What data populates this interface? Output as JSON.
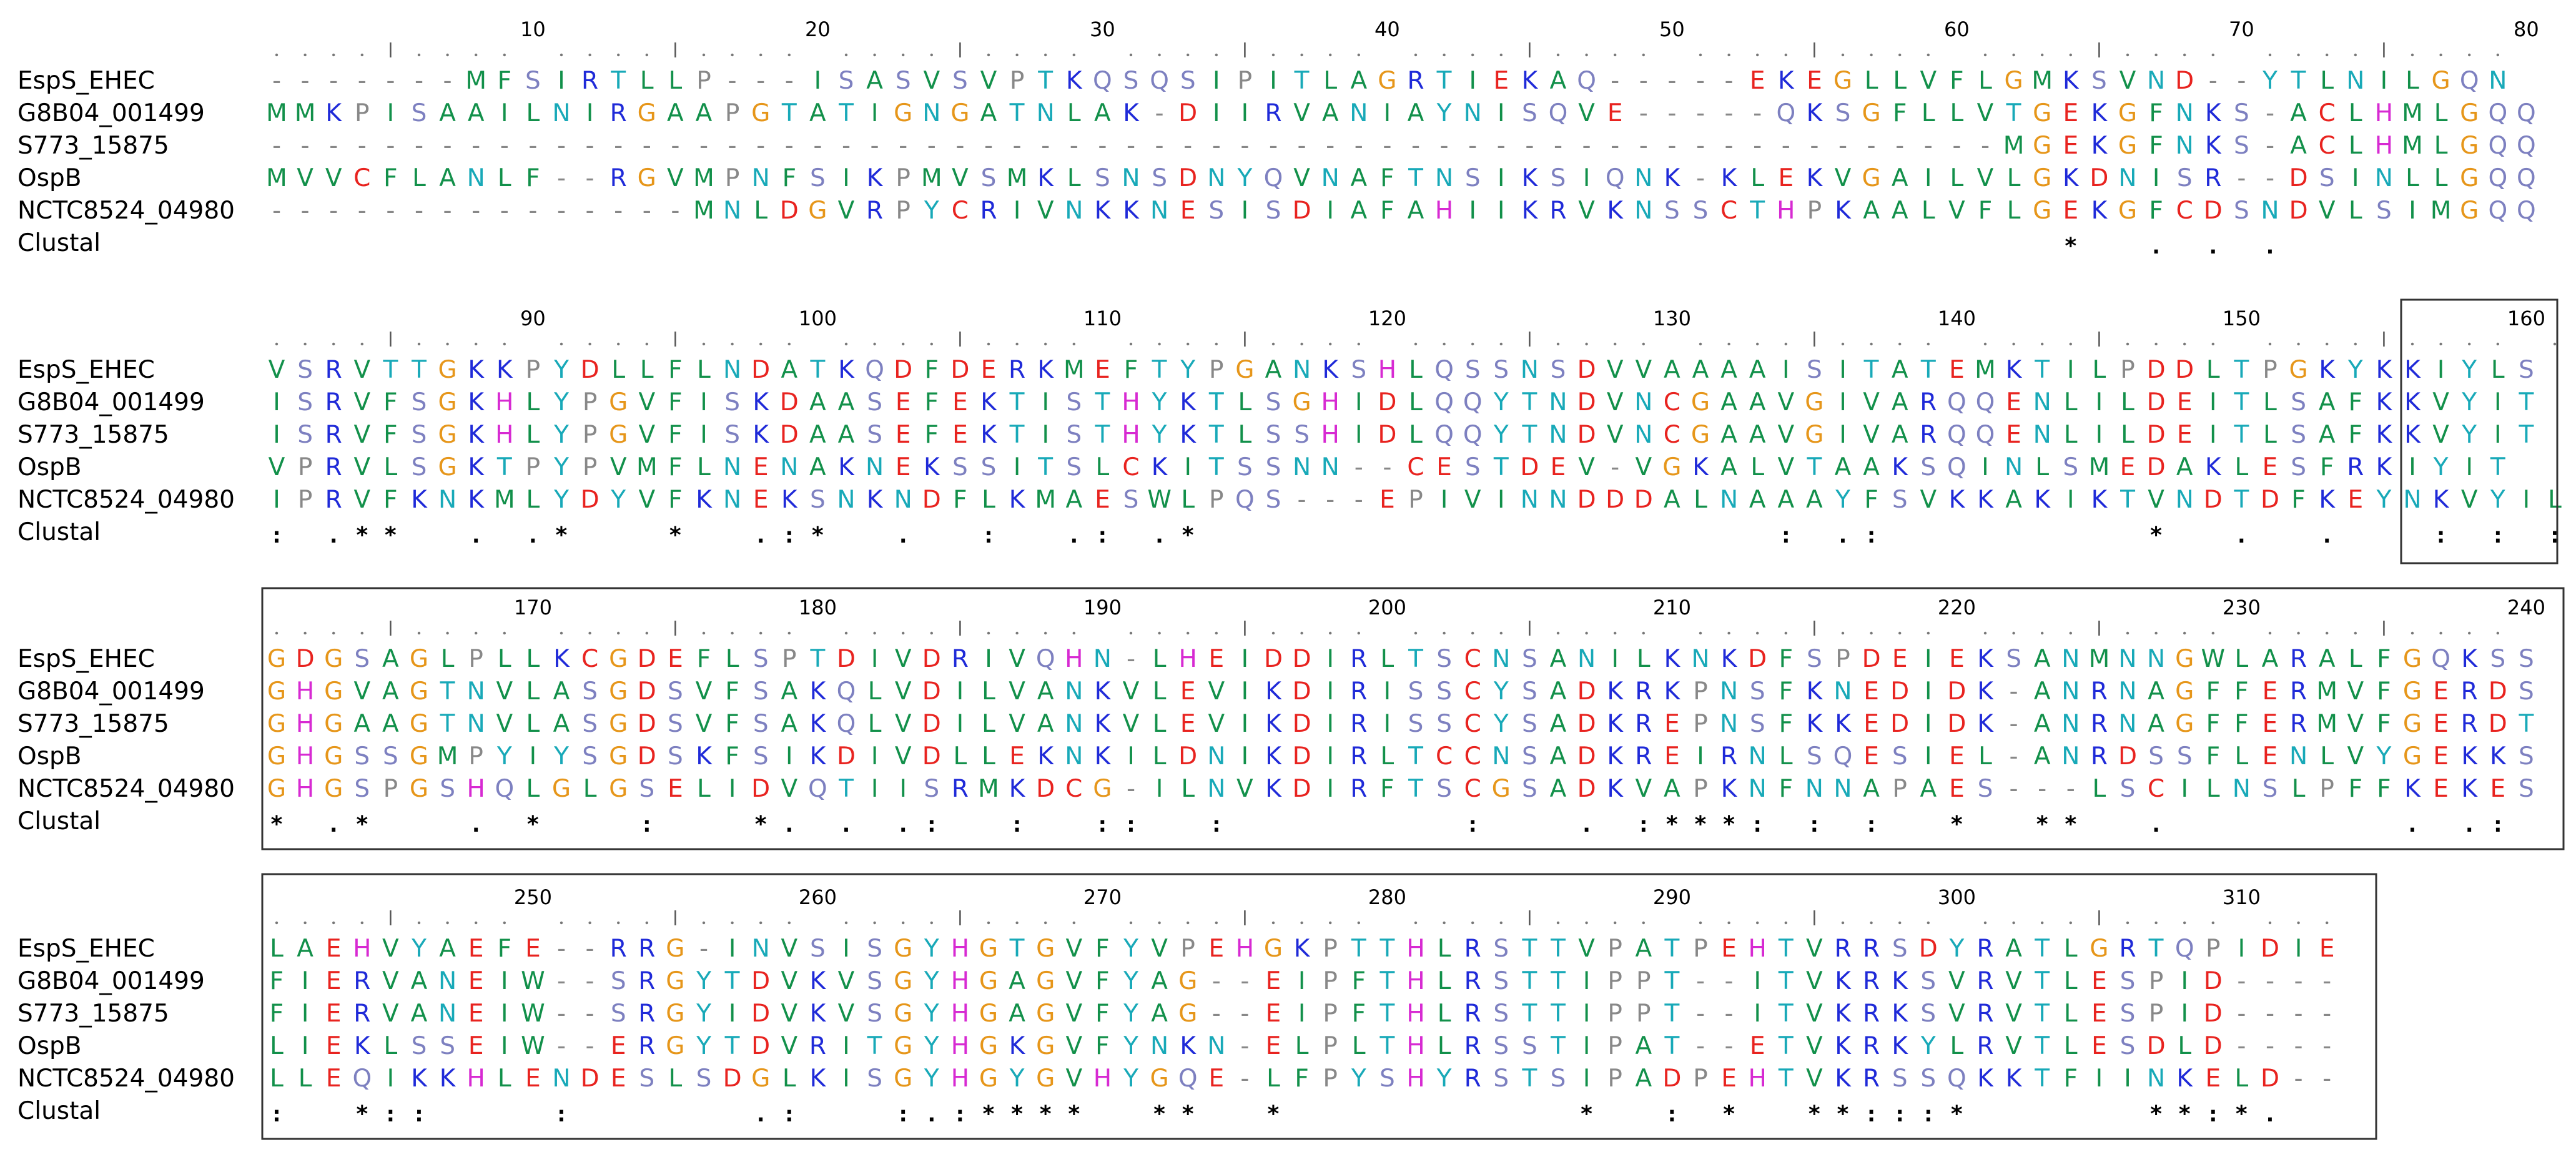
{
  "labels": [
    "EspS_EHEC",
    "G8B04_001499",
    "S773_15875",
    "OspB",
    "NCTC8524_04980"
  ],
  "consensus_label": "Clustal",
  "blocks": [
    {
      "start": 1,
      "rows": [
        "-------MFSIRTLLP---ISASVSVPTKQSQSIPITLAGRTIEKAQ-----EKEGLLVFLGMKSVND--YTLNILGQN",
        "MMKPISAAILNIRGAAPGTATIGNGATNLAK-DIIRVANIAYNISQVE-----QKSGFLLVTGEKGFNKS-ACLHMLGQQ",
        "-------------------------------------------------------------MGEKGFNKS-ACLHMLGQQ",
        "MVVCFLANLF--RGVMPNFSIKPMVSMKLSNSDNYQVNAFTNSIKSIQNK-KLEKVGAILVLGKDNISR--DSINLLGQQ",
        "---------------MNLDGVRPYCRIVNKKNESISDIAFAHIIKRVKNSSCTHPKAALVFLGEKGFCDSNDVLSIMGQQ"
      ],
      "consensus": "                                                               *  . . .         :  : :*:*:"
    },
    {
      "start": 81,
      "rows": [
        "VSRVTTGKKPYDLLFLNDATKQDFDERKMEFTYPGANKSHLQSSNSDVVAAAAISITATEMKTILPDDLTPGKYKKIYLS",
        "ISRVFSGKHLYPGVFISKDAASEFEKTISTHYKTLSGHIDLQQYTNDVNCGAAVGIVARQQENLILDEITLSAFKKVYIT",
        "ISRVFSGKHLYPGVFISKDAASEFEKTISTHYKTLSSHIDLQQYTNDVNCGAAVGIVARQQENLILDEITLSAFKKVYIT",
        "VPRVLSGKTPYPVMFLNENAKNEKSSITSLCKITSSNN--CESTDEV-VGKALVTAAKSQINLSMEDAKLESFRKIYIT",
        "IPRVFKNKMLYDYVFKNEKSNKNDFLKMAESWLPQS---EPIVINNDDDALNAAAYFSVKKAKIKTVNDTDFKEYNKVYIL"
      ],
      "consensus": ": .**  . .*   *  .:*  .  :  .: .*                    : .:         *  .  .   : : :  *:*:*.:"
    },
    {
      "start": 161,
      "rows": [
        "GDGSAGLPLLKCGDEFLSPTDIVDRIVQHN-LHEIDDIRLTSCNSANILKNKDFSPDEIEKSANMNNGWLARALFGQKSS",
        "GHGVAGTNVLASGDSVFSAKQLVDILVANKVLEVIKDIRISSCYSADKRKPNSFKNEDIDK-ANRNAGFFERMVFGERDS",
        "GHGAAGTNVLASGDSVFSAKQLVDILVANKVLEVIKDIRISSCYSADKREPNSFKKEDIDK-ANRNAGFFERMVFGERDT",
        "GHGSSGMPYIYSGDSKFSIKDIVDLLEKNKILDNIKDIRLTCCNSADKREIRNLSQESIEL-ANRDSSFLENLVYGEKKS",
        "GHGSPGSHQLGLGSELIDVQTIISRMKDCG-ILNVKDIRFTSCGSADKVAPKNFNNAPAES---LSCILNSLPFFKEKES"
      ],
      "consensus": "* .*   . *   :   *. . .:  :  ::  :        :   . :***: : :  *  **  .        . .:  :     :       .  :"
    },
    {
      "start": 241,
      "rows": [
        "LAEHVYAEFE--RRG-INVSISGYHGTGVFYVPEHGKPTTHLRSTTVPATPEHTVRRSDYRATLGRTQPIDIE",
        "FIERVANEIW--SRGYTDVKVSGYHGAGVFYAG--EIPFTHLRSTTIPPT--ITVKRKSVRVTLESPID----",
        "FIERVANEIW--SRGYIDVKVSGYHGAGVFYAG--EIPFTHLRSTTIPPT--ITVKRKSVRVTLESPID----",
        "LIEKLSSEIW--ERGYTDVRITGYHGKGVFYNKN-ELPLTHLRSSTIPAT--ETVKRKYLRVTLESDLD----",
        "LLEQIKKHLENDESLSDGLKISGYHGYGVHYGQE-LFPYSHYRSTSIPADPEHTVKRSSQKKTFIINKELD--"
      ],
      "consensus": ":  *::    :      .:   :.:****  **  *          *  : *  **:::*      **:*.      :  *:"
    },
    {
      "colors": {
        "red": "#e8231f",
        "green": "#12904a",
        "blue": "#1f2ad8",
        "orange": "#e6961a",
        "cyan": "#18a9b8",
        "purple": "#7d80c0",
        "magenta": "#d72ad2",
        "gray": "#888888"
      }
    }
  ]
}
